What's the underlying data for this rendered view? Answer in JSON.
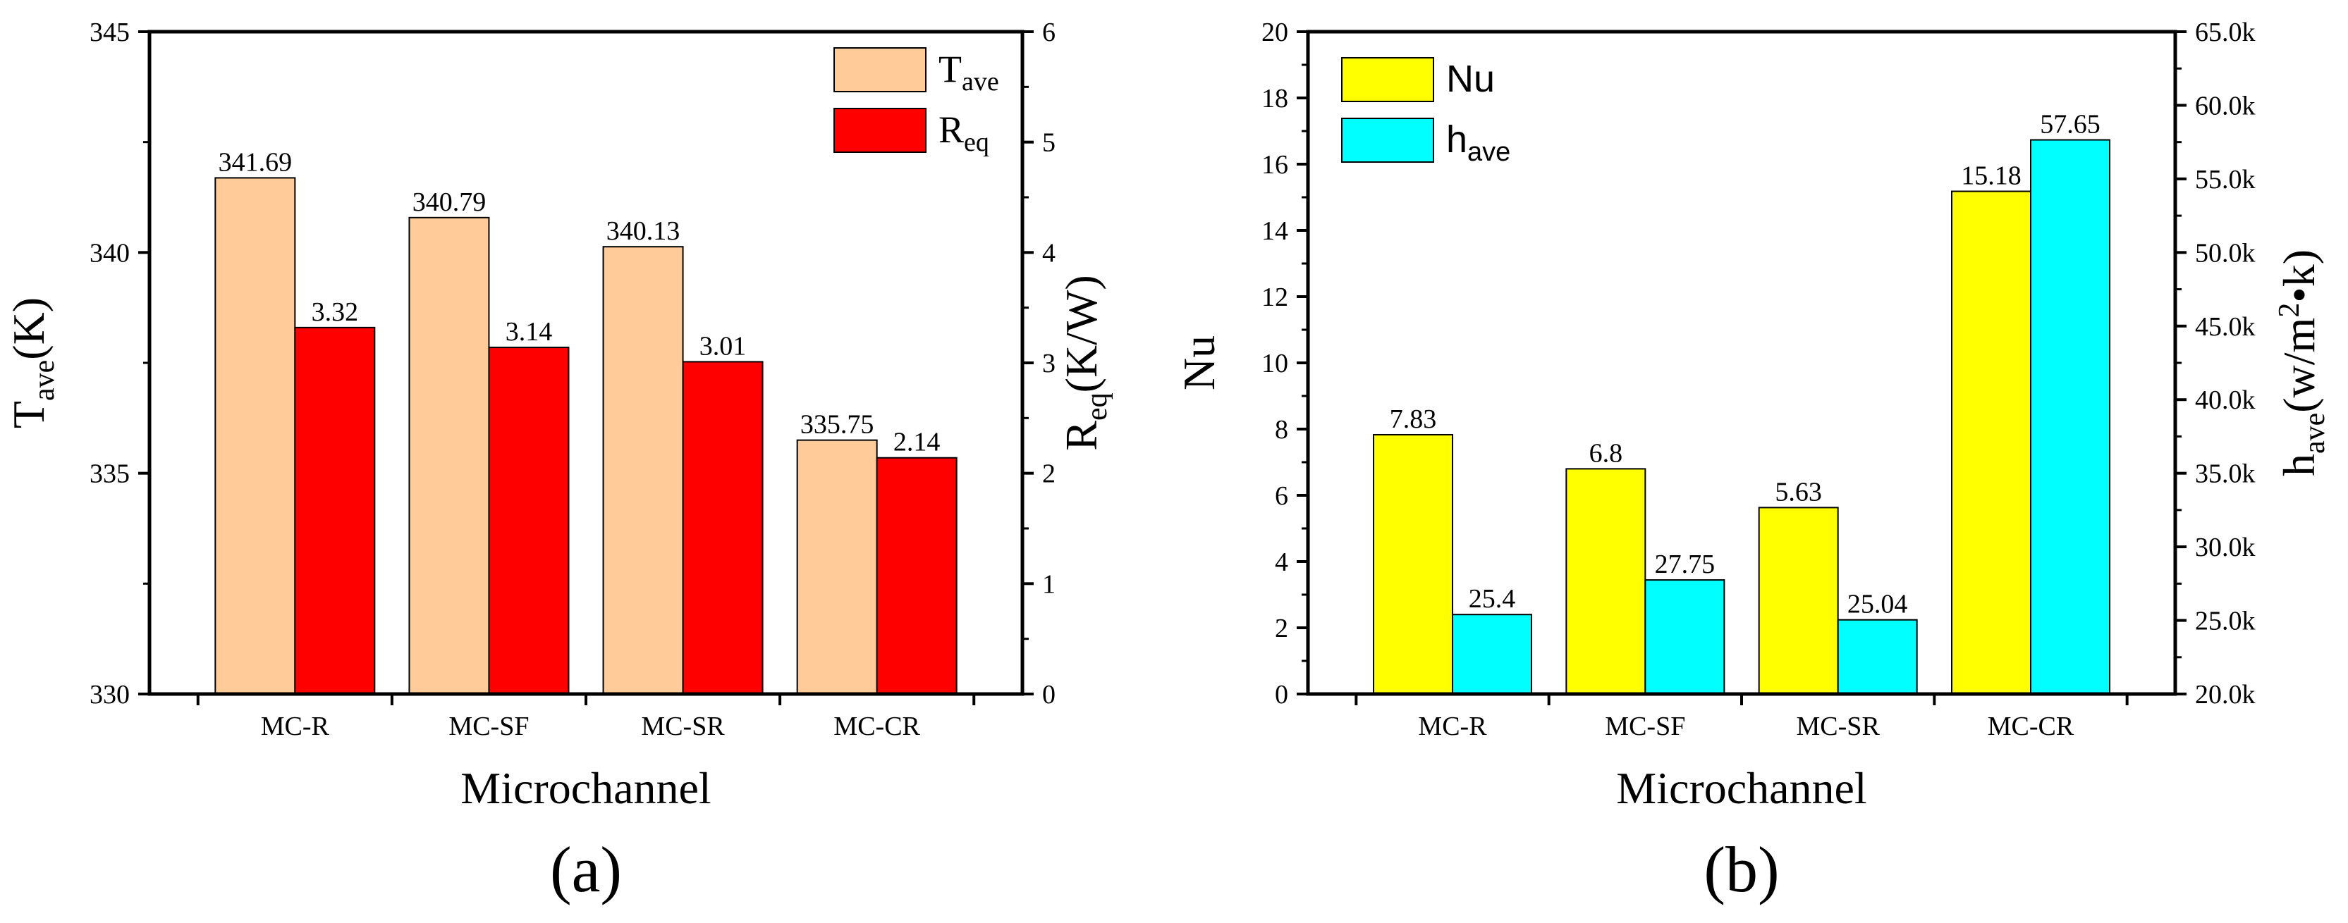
{
  "chart_data": [
    {
      "type": "bar",
      "panel_label": "(a)",
      "categories": [
        "MC-R",
        "MC-SF",
        "MC-SR",
        "MC-CR"
      ],
      "xlabel": "Microchannel",
      "y_left": {
        "label_main": "T",
        "label_sub": "ave",
        "label_tail": "(K)",
        "lim": [
          330,
          345
        ],
        "ticks": [
          "330",
          "335",
          "340",
          "345"
        ]
      },
      "y_right": {
        "label_main": "R",
        "label_sub": "eq",
        "label_tail": "(K/W)",
        "lim": [
          0,
          6
        ],
        "ticks": [
          "0",
          "1",
          "2",
          "3",
          "4",
          "5",
          "6"
        ]
      },
      "series": [
        {
          "name_main": "T",
          "name_sub": "ave",
          "axis": "left",
          "color": "#FFCC99",
          "values": [
            341.69,
            340.79,
            340.13,
            335.75
          ],
          "labels": [
            "341.69",
            "340.79",
            "340.13",
            "335.75"
          ]
        },
        {
          "name_main": "R",
          "name_sub": "eq",
          "axis": "right",
          "color": "#FF0000",
          "values": [
            3.32,
            3.14,
            3.01,
            2.14
          ],
          "labels": [
            "3.32",
            "3.14",
            "3.01",
            "2.14"
          ]
        }
      ],
      "legend_position": "top-right"
    },
    {
      "type": "bar",
      "panel_label": "(b)",
      "categories": [
        "MC-R",
        "MC-SF",
        "MC-SR",
        "MC-CR"
      ],
      "xlabel": "Microchannel",
      "y_left": {
        "label_main": "Nu",
        "label_sub": "",
        "label_tail": "",
        "lim": [
          0,
          20
        ],
        "ticks": [
          "0",
          "2",
          "4",
          "6",
          "8",
          "10",
          "12",
          "14",
          "16",
          "18",
          "20"
        ]
      },
      "y_right": {
        "label_main": "h",
        "label_sub": "ave",
        "label_tail": "(w/m",
        "label_sup": "2",
        "label_end": "•k)",
        "lim": [
          20,
          65
        ],
        "ticks": [
          "20.0k",
          "25.0k",
          "30.0k",
          "35.0k",
          "40.0k",
          "45.0k",
          "50.0k",
          "55.0k",
          "60.0k",
          "65.0k"
        ]
      },
      "series": [
        {
          "name_main": "Nu",
          "name_sub": "",
          "axis": "left",
          "color": "#FFFF00",
          "values": [
            7.83,
            6.8,
            5.63,
            15.18
          ],
          "labels": [
            "7.83",
            "6.8",
            "5.63",
            "15.18"
          ]
        },
        {
          "name_main": "h",
          "name_sub": "ave",
          "axis": "right",
          "color": "#00FFFF",
          "values": [
            25.4,
            27.75,
            25.04,
            57.65
          ],
          "labels": [
            "25.4",
            "27.75",
            "25.04",
            "57.65"
          ]
        }
      ],
      "legend_position": "top-left"
    }
  ]
}
